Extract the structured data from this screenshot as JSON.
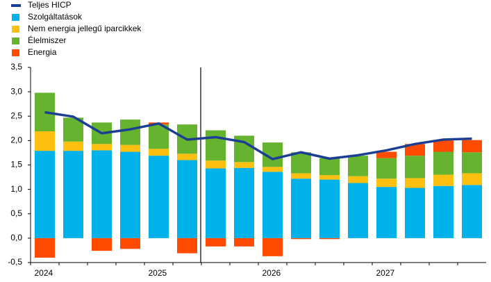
{
  "chart_data": {
    "type": "bar",
    "categories": [
      "2024",
      null,
      null,
      null,
      "2025",
      null,
      null,
      null,
      "2026",
      null,
      null,
      null,
      "2027",
      null,
      null,
      null
    ],
    "series": [
      {
        "name": "Teljes HICP",
        "color": "#1c3f94",
        "type": "line",
        "values": [
          2.58,
          2.49,
          2.15,
          2.23,
          2.35,
          2.02,
          2.07,
          1.97,
          1.62,
          1.76,
          1.63,
          1.7,
          1.8,
          1.93,
          2.02,
          2.04
        ]
      },
      {
        "name": "Szolgáltatások",
        "color": "#00b1ea",
        "values": [
          1.79,
          1.79,
          1.8,
          1.77,
          1.69,
          1.6,
          1.43,
          1.44,
          1.36,
          1.22,
          1.2,
          1.13,
          1.05,
          1.03,
          1.07,
          1.09
        ]
      },
      {
        "name": "Nem energia jellegű iparcikkek",
        "color": "#fdc010",
        "values": [
          0.4,
          0.19,
          0.13,
          0.14,
          0.14,
          0.13,
          0.16,
          0.12,
          0.1,
          0.11,
          0.09,
          0.14,
          0.17,
          0.2,
          0.23,
          0.24
        ]
      },
      {
        "name": "Élelmiszer",
        "color": "#65b32e",
        "values": [
          0.79,
          0.49,
          0.44,
          0.52,
          0.5,
          0.6,
          0.62,
          0.54,
          0.5,
          0.43,
          0.35,
          0.42,
          0.42,
          0.46,
          0.47,
          0.43
        ]
      },
      {
        "name": "Energia",
        "color": "#ff4b00",
        "values": [
          -0.4,
          0,
          -0.26,
          -0.22,
          0.04,
          -0.31,
          -0.17,
          -0.17,
          -0.37,
          -0.02,
          -0.02,
          0,
          0.13,
          0.24,
          0.23,
          0.25
        ]
      }
    ],
    "ylim": [
      -0.5,
      3.5
    ],
    "yticks": [
      {
        "value": -0.5,
        "label": "-0,5"
      },
      {
        "value": 0,
        "label": "0,0"
      },
      {
        "value": 0.5,
        "label": "0,5"
      },
      {
        "value": 1,
        "label": "1,0"
      },
      {
        "value": 1.5,
        "label": "1,5"
      },
      {
        "value": 2,
        "label": "2,0"
      },
      {
        "value": 2.5,
        "label": "2,5"
      },
      {
        "value": 3,
        "label": "3,0"
      },
      {
        "value": 3.5,
        "label": "3,5"
      }
    ],
    "grid": false
  }
}
